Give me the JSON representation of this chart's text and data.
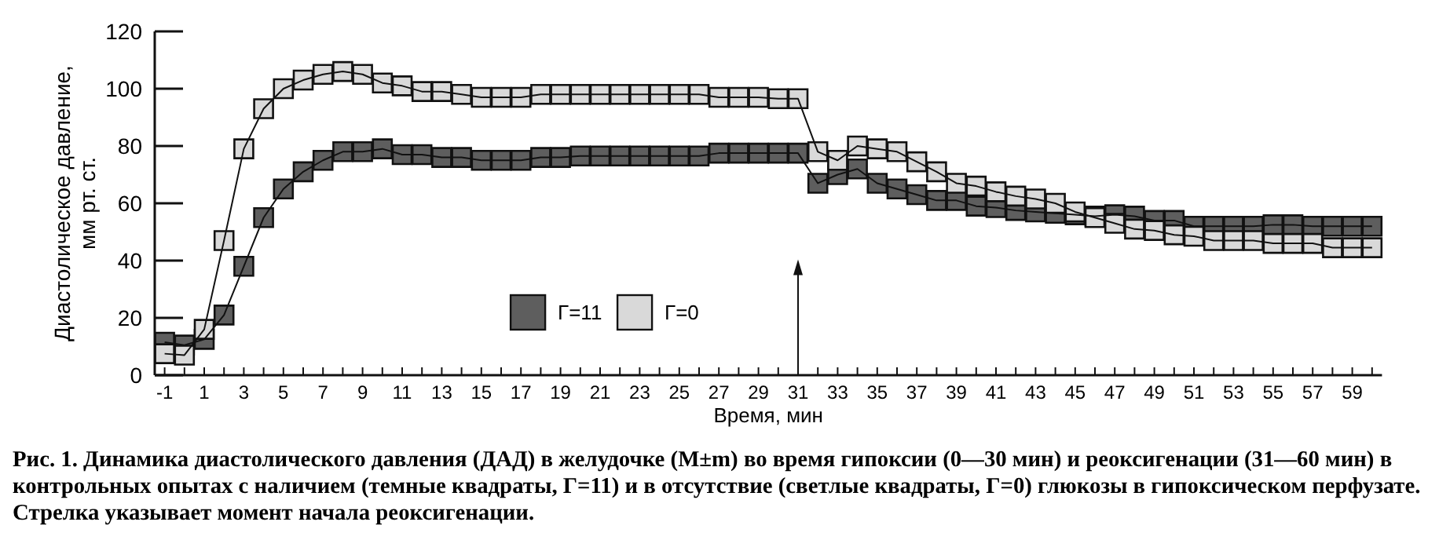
{
  "chart_data": {
    "type": "scatter",
    "xlabel": "Время, мин",
    "ylabel": "Диастолическое давление, мм рт. ст.",
    "x": [
      -1,
      0,
      1,
      2,
      3,
      4,
      5,
      6,
      7,
      8,
      9,
      10,
      11,
      12,
      13,
      14,
      15,
      16,
      17,
      18,
      19,
      20,
      21,
      22,
      23,
      24,
      25,
      26,
      27,
      28,
      29,
      30,
      31,
      32,
      33,
      34,
      35,
      36,
      37,
      38,
      39,
      40,
      41,
      42,
      43,
      44,
      45,
      46,
      47,
      48,
      49,
      50,
      51,
      52,
      53,
      54,
      55,
      56,
      57,
      58,
      59,
      60
    ],
    "xlim": [
      -1.5,
      60.5
    ],
    "xticks": [
      -1,
      {
        "value": 0,
        "label": null
      },
      1,
      {
        "value": 2,
        "label": null
      },
      3,
      {
        "value": 4,
        "label": null
      },
      5,
      {
        "value": 6,
        "label": null
      },
      7,
      {
        "value": 8,
        "label": null
      },
      9,
      {
        "value": 10,
        "label": null
      },
      11,
      {
        "value": 12,
        "label": null
      },
      13,
      {
        "value": 14,
        "label": null
      },
      15,
      {
        "value": 16,
        "label": null
      },
      17,
      {
        "value": 18,
        "label": null
      },
      19,
      {
        "value": 20,
        "label": null
      },
      21,
      {
        "value": 22,
        "label": null
      },
      23,
      {
        "value": 24,
        "label": null
      },
      25,
      {
        "value": 26,
        "label": null
      },
      27,
      {
        "value": 28,
        "label": null
      },
      29,
      {
        "value": 30,
        "label": null
      },
      31,
      {
        "value": 32,
        "label": null
      },
      33,
      {
        "value": 34,
        "label": null
      },
      35,
      {
        "value": 36,
        "label": null
      },
      37,
      {
        "value": 38,
        "label": null
      },
      39,
      {
        "value": 40,
        "label": null
      },
      41,
      {
        "value": 42,
        "label": null
      },
      43,
      {
        "value": 44,
        "label": null
      },
      45,
      {
        "value": 46,
        "label": null
      },
      47,
      {
        "value": 48,
        "label": null
      },
      49,
      {
        "value": 50,
        "label": null
      },
      51,
      {
        "value": 52,
        "label": null
      },
      53,
      {
        "value": 54,
        "label": null
      },
      55,
      {
        "value": 56,
        "label": null
      },
      57,
      {
        "value": 58,
        "label": null
      },
      59,
      {
        "value": 60,
        "label": null
      }
    ],
    "ylim": [
      0,
      120
    ],
    "yticks": [
      0,
      20,
      40,
      60,
      80,
      100,
      120
    ],
    "marker": "square",
    "line_style": "solid",
    "grid": false,
    "legend": "bottom",
    "series": [
      {
        "type": "line",
        "marker": "none",
        "color": "#111111",
        "values": [
          11.5,
          10.5,
          12.5,
          21,
          38,
          55,
          65,
          71,
          75,
          78,
          78,
          79,
          77,
          77,
          76,
          76,
          75,
          75,
          75,
          76,
          76,
          76.5,
          76.5,
          76.5,
          76.5,
          76.5,
          76.5,
          76.5,
          77.5,
          77.5,
          77.5,
          77.5,
          77.5,
          67,
          70,
          72,
          67,
          65,
          63,
          61,
          61,
          59,
          58.5,
          57.5,
          57,
          56.5,
          56,
          55.5,
          56,
          55.5,
          54,
          54,
          52,
          52,
          52,
          52,
          52.5,
          52.5,
          52,
          52,
          52,
          52
        ]
      },
      {
        "type": "line",
        "marker": "none",
        "color": "#111111",
        "values": [
          7.5,
          7,
          16,
          47,
          79,
          93,
          100,
          103,
          105,
          106,
          105,
          102,
          101,
          99,
          99,
          98,
          97,
          97,
          97,
          98,
          98,
          98,
          98,
          98,
          98,
          98,
          98,
          98,
          97,
          97,
          97,
          96.5,
          96.5,
          78,
          75,
          80,
          79,
          78,
          74.5,
          71,
          67,
          66,
          64,
          62.5,
          61.5,
          60,
          57,
          55,
          53,
          51,
          50.5,
          49,
          48.5,
          47,
          47,
          47,
          46,
          46,
          46,
          44.5,
          44.5,
          44.5
        ]
      },
      {
        "name": "Г=11",
        "color": "#5e5e5e",
        "values": [
          11.5,
          10.5,
          12.5,
          21,
          38,
          55,
          65,
          71,
          75,
          78,
          78,
          79,
          77,
          77,
          76,
          76,
          75,
          75,
          75,
          76,
          76,
          76.5,
          76.5,
          76.5,
          76.5,
          76.5,
          76.5,
          76.5,
          77.5,
          77.5,
          77.5,
          77.5,
          77.5,
          67,
          70,
          72,
          67,
          65,
          63,
          61,
          61,
          59,
          58.5,
          57.5,
          57,
          56.5,
          56,
          55.5,
          56,
          55.5,
          54,
          54,
          52,
          52,
          52,
          52,
          52.5,
          52.5,
          52,
          52,
          52,
          52
        ],
        "errors": [
          3,
          3,
          3,
          3,
          3,
          3,
          3,
          3,
          3,
          3,
          3,
          3,
          3,
          3,
          3,
          3,
          3,
          3,
          3,
          3,
          3,
          3,
          3,
          3,
          3,
          3,
          3,
          3,
          3,
          3,
          3,
          3,
          3,
          3,
          3,
          3,
          3,
          3,
          3,
          3,
          3,
          3,
          3,
          3,
          3,
          3,
          3,
          3,
          3,
          3,
          3,
          3,
          3,
          3,
          3,
          3,
          3,
          3,
          3,
          3,
          3,
          3
        ]
      },
      {
        "name": "Г=0",
        "color": "#d9d9d9",
        "values": [
          7.5,
          7,
          16,
          47,
          79,
          93,
          100,
          103,
          105,
          106,
          105,
          102,
          101,
          99,
          99,
          98,
          97,
          97,
          97,
          98,
          98,
          98,
          98,
          98,
          98,
          98,
          98,
          98,
          97,
          97,
          97,
          96.5,
          96.5,
          78,
          75,
          80,
          79,
          78,
          74.5,
          71,
          67,
          66,
          64,
          62.5,
          61.5,
          60,
          57,
          55,
          53,
          51,
          50.5,
          49,
          48.5,
          47,
          47,
          47,
          46,
          46,
          46,
          44.5,
          44.5,
          44.5
        ],
        "errors": [
          3,
          3,
          3,
          3,
          3,
          3,
          3,
          3,
          3,
          3,
          3,
          3,
          3,
          3,
          3,
          3,
          3,
          3,
          3,
          3,
          3,
          3,
          3,
          3,
          3,
          3,
          3,
          3,
          3,
          3,
          3,
          3,
          3,
          3,
          3,
          3,
          3,
          3,
          3,
          3,
          3,
          3,
          3,
          3,
          3,
          3,
          3,
          3,
          3,
          3,
          3,
          3,
          3,
          3,
          3,
          3,
          3,
          3,
          3,
          3,
          3,
          3
        ]
      }
    ],
    "ref_lines": [
      {
        "axis": "x",
        "value": 31
      }
    ],
    "annotations": [
      "Рис. 1. Динамика диастолического давления (ДАД) в желудочке (M±m) во время гипоксии (0—30 мин) и реоксигенации (31—60 мин) в контрольных опытах с наличием (темные квадраты, Г=11) и в отсутствие (светлые квадраты, Г=0) глюкозы в гипоксическом перфузате. Стрелка указывает момент начала реоксигенации."
    ]
  }
}
